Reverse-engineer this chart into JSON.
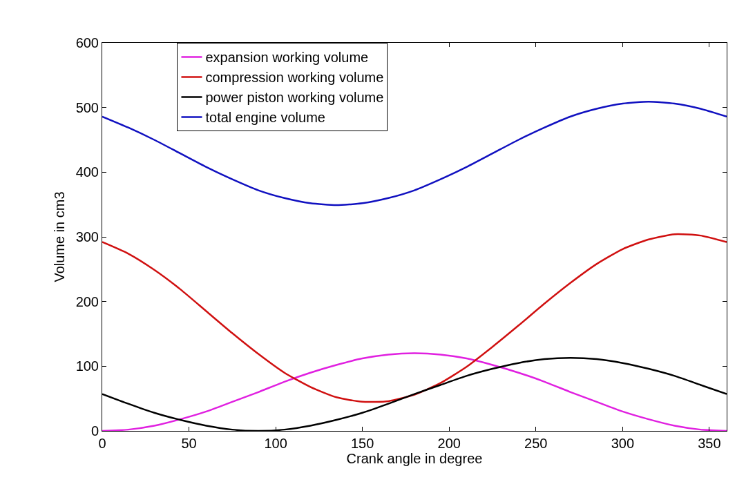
{
  "chart_data": {
    "type": "line",
    "xlabel": "Crank angle in degree",
    "ylabel": "Volume in cm3",
    "xlim": [
      0,
      360
    ],
    "xticks": [
      0,
      50,
      100,
      150,
      200,
      250,
      300,
      350
    ],
    "ylim": [
      0,
      600
    ],
    "yticks": [
      0,
      100,
      200,
      300,
      400,
      500,
      600
    ],
    "grid": false,
    "legend": "top left",
    "marker": "none",
    "line_style": "solid",
    "x": [
      0,
      15,
      30,
      45,
      60,
      75,
      90,
      105,
      120,
      135,
      150,
      165,
      180,
      195,
      210,
      225,
      240,
      255,
      270,
      285,
      300,
      315,
      330,
      345,
      360
    ],
    "series": [
      {
        "name": "expansion working volume",
        "color": "#e020e0",
        "values": [
          0,
          2,
          8,
          18,
          30,
          45,
          60,
          76,
          90,
          102,
          112,
          118,
          120,
          118,
          112,
          102,
          90,
          76,
          60,
          45,
          30,
          18,
          8,
          2,
          0
        ]
      },
      {
        "name": "compression working volume",
        "color": "#d01010",
        "values": [
          292,
          274,
          249,
          219,
          185,
          151,
          119,
          90,
          68,
          52,
          45,
          46,
          56,
          74,
          99,
          130,
          163,
          197,
          229,
          258,
          281,
          296,
          304,
          302,
          292
        ]
      },
      {
        "name": "power piston working volume",
        "color": "#000000",
        "values": [
          57,
          42,
          28,
          17,
          8,
          2,
          0,
          2,
          8,
          17,
          28,
          42,
          57,
          71,
          85,
          96,
          105,
          111,
          113,
          111,
          105,
          96,
          85,
          71,
          57
        ]
      },
      {
        "name": "total engine volume",
        "color": "#1010c0",
        "values": [
          486,
          469,
          450,
          429,
          408,
          389,
          372,
          360,
          352,
          349,
          352,
          360,
          372,
          389,
          408,
          429,
          450,
          469,
          486,
          498,
          506,
          509,
          506,
          498,
          486
        ]
      }
    ]
  }
}
